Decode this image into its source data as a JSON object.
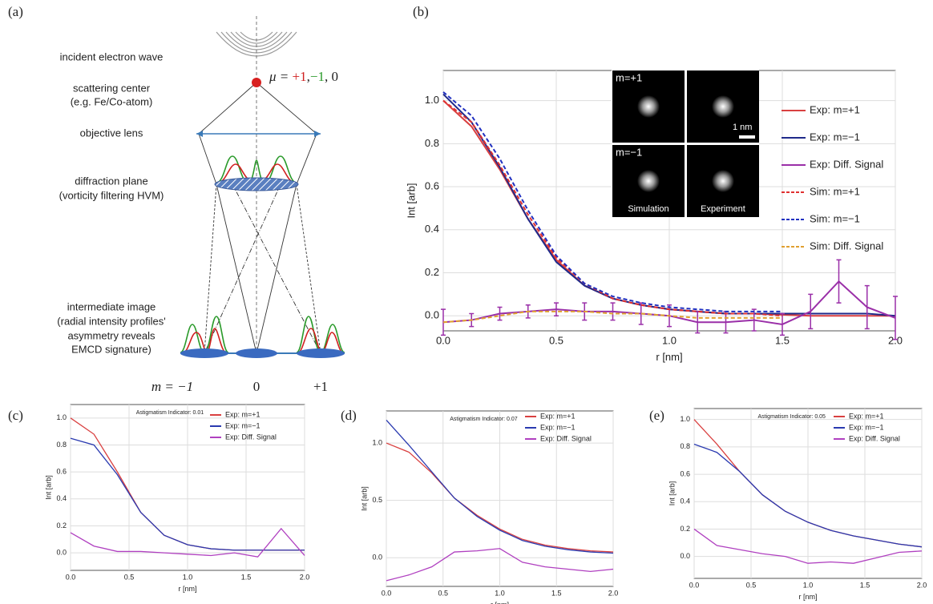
{
  "diagram": {
    "panel_label": "(a)",
    "incident": "incident electron wave",
    "scattering": "scattering center",
    "scattering_note": "(e.g. Fe/Co-atom)",
    "lens": "objective lens",
    "diffraction": "diffraction plane",
    "diffraction_note": "(vorticity filtering HVM)",
    "intermediate": "intermediate image",
    "intermediate_note_1": "(radial intensity profiles'",
    "intermediate_note_2": "asymmetry reveals",
    "intermediate_note_3": "EMCD signature)",
    "mu_prefix": "μ = ",
    "mu_plus": "+1",
    "mu_sep": ",",
    "mu_minus": "−1",
    "mu_zero": ", 0",
    "m_minus": "m = −1",
    "m_zero": "0",
    "m_plus": "+1"
  },
  "chart_data": [
    {
      "type": "line",
      "panel_label": "(b)",
      "xlabel": "r [nm]",
      "ylabel": "Int [arb]",
      "legend": "upper right",
      "grid": true,
      "x": [
        0,
        0.125,
        0.25,
        0.375,
        0.5,
        0.625,
        0.75,
        0.875,
        1.0,
        1.125,
        1.25,
        1.375,
        1.5,
        1.625,
        1.75,
        1.875,
        2.0
      ],
      "xlim": [
        0,
        2
      ],
      "ylim": [
        -0.07,
        1.14
      ],
      "xticks": [
        {
          "value": 0,
          "label": "0.0"
        },
        {
          "value": 0.5,
          "label": "0.5"
        },
        {
          "value": 1,
          "label": "1.0"
        },
        {
          "value": 1.5,
          "label": "1.5"
        },
        {
          "value": 2,
          "label": "2.0"
        }
      ],
      "yticks": [
        {
          "value": 0,
          "label": "0.0"
        },
        {
          "value": 0.2,
          "label": "0.2"
        },
        {
          "value": 0.4,
          "label": "0.4"
        },
        {
          "value": 0.6,
          "label": "0.6"
        },
        {
          "value": 0.8,
          "label": "0.8"
        },
        {
          "value": 1,
          "label": "1.0"
        }
      ],
      "inset": {
        "top_left": "m=+1",
        "scale": "1 nm",
        "bottom_left": "m=−1",
        "simulation": "Simulation",
        "experiment": "Experiment"
      },
      "series": [
        {
          "name": "Exp: m=+1",
          "color": "#d94040",
          "dash": false,
          "values": [
            1.0,
            0.88,
            0.68,
            0.45,
            0.26,
            0.14,
            0.08,
            0.05,
            0.03,
            0.02,
            0.01,
            0.01,
            0.005,
            0.0,
            0.0,
            0.0,
            0.0
          ]
        },
        {
          "name": "Exp: m=−1",
          "color": "#1f2a8a",
          "dash": false,
          "values": [
            1.03,
            0.9,
            0.69,
            0.45,
            0.25,
            0.14,
            0.08,
            0.05,
            0.03,
            0.02,
            0.01,
            0.01,
            0.01,
            0.01,
            0.01,
            0.01,
            0.0
          ]
        },
        {
          "name": "Exp: Diff. Signal",
          "color": "#9a2fa8",
          "dash": false,
          "values": [
            -0.03,
            -0.02,
            0.01,
            0.02,
            0.03,
            0.02,
            0.02,
            0.01,
            0.0,
            -0.03,
            -0.03,
            -0.02,
            -0.04,
            0.02,
            0.16,
            0.04,
            -0.01
          ],
          "errors": [
            0.06,
            0.03,
            0.03,
            0.03,
            0.03,
            0.04,
            0.04,
            0.05,
            0.05,
            0.05,
            0.05,
            0.05,
            0.05,
            0.08,
            0.1,
            0.1,
            0.1
          ]
        },
        {
          "name": "Sim: m=+1",
          "color": "#e03030",
          "dash": true,
          "values": [
            1.0,
            0.9,
            0.7,
            0.47,
            0.27,
            0.15,
            0.08,
            0.05,
            0.03,
            0.02,
            0.01,
            0.01,
            0.0,
            null,
            null,
            null,
            null
          ]
        },
        {
          "name": "Sim: m=−1",
          "color": "#2030c0",
          "dash": true,
          "values": [
            1.04,
            0.93,
            0.73,
            0.49,
            0.28,
            0.15,
            0.09,
            0.06,
            0.04,
            0.03,
            0.02,
            0.02,
            0.02,
            null,
            null,
            null,
            null
          ]
        },
        {
          "name": "Sim: Diff. Signal",
          "color": "#e0a030",
          "dash": true,
          "values": [
            -0.03,
            -0.02,
            0.0,
            0.02,
            0.02,
            0.02,
            0.01,
            0.01,
            0.0,
            -0.01,
            -0.01,
            -0.01,
            -0.01,
            null,
            null,
            null,
            null
          ]
        }
      ]
    },
    {
      "type": "line",
      "panel_label": "(c)",
      "xlabel": "r [nm]",
      "ylabel": "Int [arb]",
      "annotation": "Astigmatism Indicator: 0.01",
      "legend": "upper right",
      "grid": true,
      "x": [
        0,
        0.2,
        0.4,
        0.6,
        0.8,
        1.0,
        1.2,
        1.4,
        1.6,
        1.8,
        2.0
      ],
      "xlim": [
        0,
        2
      ],
      "ylim": [
        -0.13,
        1.1
      ],
      "xticks": [
        {
          "value": 0,
          "label": "0.0"
        },
        {
          "value": 0.5,
          "label": "0.5"
        },
        {
          "value": 1,
          "label": "1.0"
        },
        {
          "value": 1.5,
          "label": "1.5"
        },
        {
          "value": 2,
          "label": "2.0"
        }
      ],
      "yticks": [
        {
          "value": 0,
          "label": "0.0"
        },
        {
          "value": 0.2,
          "label": "0.2"
        },
        {
          "value": 0.4,
          "label": "0.4"
        },
        {
          "value": 0.6,
          "label": "0.6"
        },
        {
          "value": 0.8,
          "label": "0.8"
        },
        {
          "value": 1,
          "label": "1.0"
        }
      ],
      "series": [
        {
          "name": "Exp: m=+1",
          "color": "#d94040",
          "dash": false,
          "values": [
            1.0,
            0.88,
            0.6,
            0.3,
            0.13,
            0.06,
            0.03,
            0.02,
            0.02,
            0.02,
            0.02
          ]
        },
        {
          "name": "Exp: m=−1",
          "color": "#2a3ab0",
          "dash": false,
          "values": [
            0.85,
            0.8,
            0.58,
            0.3,
            0.13,
            0.06,
            0.03,
            0.02,
            0.02,
            0.02,
            0.02
          ]
        },
        {
          "name": "Exp: Diff. Signal",
          "color": "#b040c0",
          "dash": false,
          "values": [
            0.15,
            0.05,
            0.01,
            0.01,
            0.0,
            -0.01,
            -0.02,
            0.0,
            -0.03,
            0.18,
            -0.02
          ]
        }
      ]
    },
    {
      "type": "line",
      "panel_label": "(d)",
      "xlabel": "r [nm]",
      "ylabel": "Int [arb]",
      "annotation": "Astigmatism Indicator: 0.07",
      "legend": "upper right",
      "grid": true,
      "x": [
        0,
        0.2,
        0.4,
        0.6,
        0.8,
        1.0,
        1.2,
        1.4,
        1.6,
        1.8,
        2.0
      ],
      "xlim": [
        0,
        2
      ],
      "ylim": [
        -0.25,
        1.28
      ],
      "xticks": [
        {
          "value": 0,
          "label": "0.0"
        },
        {
          "value": 0.5,
          "label": "0.5"
        },
        {
          "value": 1,
          "label": "1.0"
        },
        {
          "value": 1.5,
          "label": "1.5"
        },
        {
          "value": 2,
          "label": "2.0"
        }
      ],
      "yticks": [
        {
          "value": 0,
          "label": "0.0"
        },
        {
          "value": 0.5,
          "label": "0.5"
        },
        {
          "value": 1,
          "label": "1.0"
        }
      ],
      "series": [
        {
          "name": "Exp: m=+1",
          "color": "#d94040",
          "dash": false,
          "values": [
            1.0,
            0.92,
            0.74,
            0.52,
            0.37,
            0.25,
            0.16,
            0.11,
            0.08,
            0.06,
            0.05
          ]
        },
        {
          "name": "Exp: m=−1",
          "color": "#2a3ab0",
          "dash": false,
          "values": [
            1.2,
            0.98,
            0.75,
            0.52,
            0.36,
            0.24,
            0.15,
            0.1,
            0.07,
            0.05,
            0.04
          ]
        },
        {
          "name": "Exp: Diff. Signal",
          "color": "#b040c0",
          "dash": false,
          "values": [
            -0.2,
            -0.15,
            -0.08,
            0.05,
            0.06,
            0.08,
            -0.04,
            -0.08,
            -0.1,
            -0.12,
            -0.1
          ]
        }
      ]
    },
    {
      "type": "line",
      "panel_label": "(e)",
      "xlabel": "r [nm]",
      "ylabel": "Int [arb]",
      "annotation": "Astigmatism Indicator: 0.05",
      "legend": "upper right",
      "grid": true,
      "x": [
        0,
        0.2,
        0.4,
        0.6,
        0.8,
        1.0,
        1.2,
        1.4,
        1.6,
        1.8,
        2.0
      ],
      "xlim": [
        0,
        2
      ],
      "ylim": [
        -0.16,
        1.08
      ],
      "xticks": [
        {
          "value": 0,
          "label": "0.0"
        },
        {
          "value": 0.5,
          "label": "0.5"
        },
        {
          "value": 1,
          "label": "1.0"
        },
        {
          "value": 1.5,
          "label": "1.5"
        },
        {
          "value": 2,
          "label": "2.0"
        }
      ],
      "yticks": [
        {
          "value": 0,
          "label": "0.0"
        },
        {
          "value": 0.2,
          "label": "0.2"
        },
        {
          "value": 0.4,
          "label": "0.4"
        },
        {
          "value": 0.6,
          "label": "0.6"
        },
        {
          "value": 0.8,
          "label": "0.8"
        },
        {
          "value": 1,
          "label": "1.0"
        }
      ],
      "series": [
        {
          "name": "Exp: m=+1",
          "color": "#d94040",
          "dash": false,
          "values": [
            1.0,
            0.82,
            0.62,
            0.45,
            0.33,
            0.25,
            0.19,
            0.15,
            0.12,
            0.09,
            0.07
          ]
        },
        {
          "name": "Exp: m=−1",
          "color": "#2a3ab0",
          "dash": false,
          "values": [
            0.82,
            0.76,
            0.62,
            0.45,
            0.33,
            0.25,
            0.19,
            0.15,
            0.12,
            0.09,
            0.07
          ]
        },
        {
          "name": "Exp: Diff. Signal",
          "color": "#b040c0",
          "dash": false,
          "values": [
            0.2,
            0.08,
            0.05,
            0.02,
            0.0,
            -0.05,
            -0.04,
            -0.05,
            -0.01,
            0.03,
            0.04
          ]
        }
      ]
    }
  ]
}
